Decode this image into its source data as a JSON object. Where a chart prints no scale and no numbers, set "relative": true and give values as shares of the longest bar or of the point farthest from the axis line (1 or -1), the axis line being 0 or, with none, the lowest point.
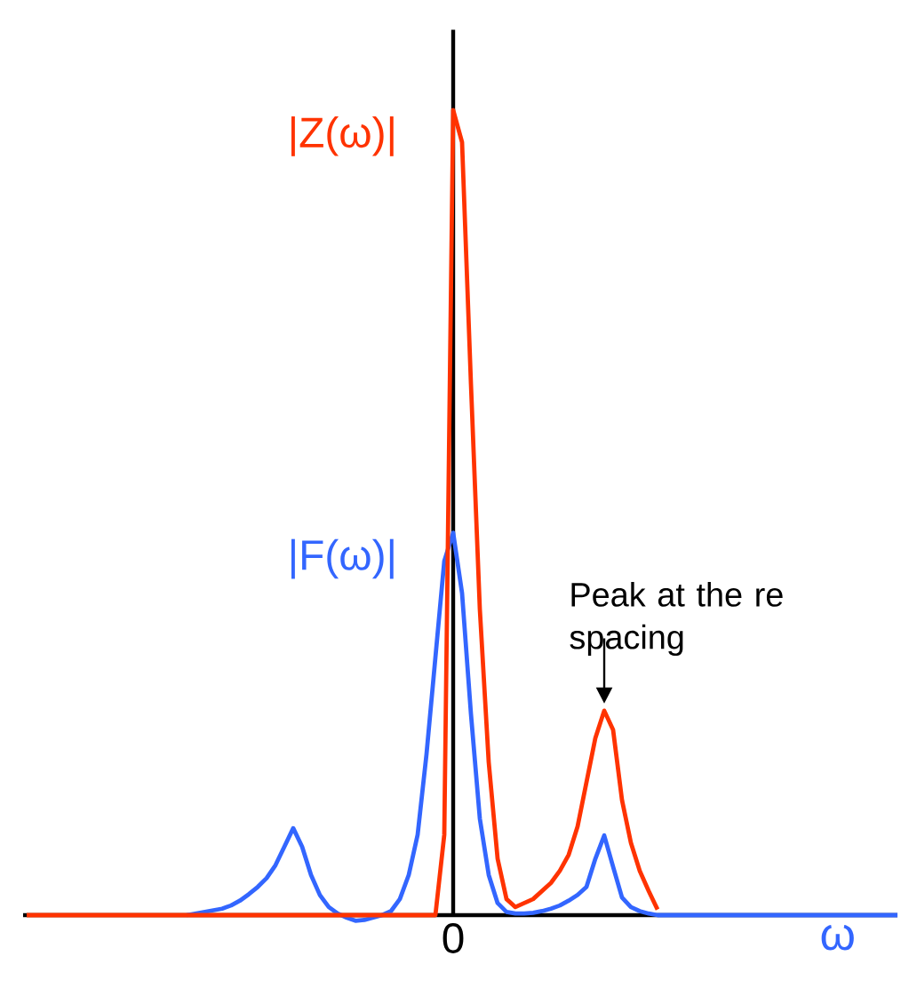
{
  "chart_data": {
    "type": "line",
    "relative": true,
    "xlabel": "ω",
    "marker": "none",
    "line_style": "solid",
    "categories": [
      null,
      null,
      null,
      null,
      null,
      null,
      null,
      null,
      null,
      null,
      null,
      null,
      null,
      null,
      null,
      null,
      null,
      null,
      null,
      null,
      null,
      null,
      null,
      null,
      null,
      null,
      null,
      null,
      null,
      null,
      null,
      null,
      null,
      null,
      null,
      null,
      null,
      null,
      null,
      null,
      null,
      null,
      null,
      null,
      null,
      null,
      null,
      null,
      null,
      null,
      null,
      null,
      null,
      null,
      null,
      null,
      null,
      null,
      null,
      null,
      null,
      null,
      null,
      null,
      null,
      null,
      null,
      null,
      null,
      null,
      null,
      null,
      null,
      null,
      null,
      null,
      null,
      null,
      null,
      null,
      null,
      null,
      null,
      null,
      null,
      null,
      null,
      null,
      null,
      null,
      null,
      null,
      null,
      null,
      null,
      null,
      null,
      null,
      null
    ],
    "annotations": [
      "Peak at the re spacing",
      "0"
    ],
    "series": [
      {
        "name": "|Z(ω)|",
        "color": "#ff3300",
        "values": [
          0,
          0,
          0,
          0,
          0,
          0,
          0,
          0,
          0,
          0,
          0,
          0,
          0,
          0,
          0,
          0,
          0,
          0,
          0,
          0,
          0,
          0,
          0,
          0,
          0,
          0,
          0,
          0,
          0,
          0,
          0,
          0,
          0,
          0,
          0,
          0,
          0,
          0,
          0,
          0,
          0,
          0,
          0,
          0,
          0,
          0,
          0,
          0.1,
          1,
          0.96,
          0.66,
          0.38,
          0.19,
          0.07,
          0.02,
          0.01,
          0.015,
          0.02,
          0.03,
          0.04,
          0.055,
          0.075,
          0.11,
          0.165,
          0.22,
          0.254,
          0.23,
          0.143,
          0.09,
          0.055,
          0.03,
          0.007,
          null,
          null,
          null,
          null,
          null,
          null,
          null,
          null,
          null,
          null,
          null,
          null,
          null,
          null,
          null,
          null,
          null,
          null,
          null,
          null,
          null,
          null,
          null,
          null,
          null,
          null,
          null
        ]
      },
      {
        "name": "|F(ω)|",
        "color": "#3366ff",
        "values": [
          null,
          null,
          null,
          null,
          null,
          null,
          null,
          null,
          null,
          null,
          null,
          null,
          null,
          null,
          null,
          null,
          null,
          null,
          0,
          0.002,
          0.004,
          0.006,
          0.008,
          0.012,
          0.018,
          0.026,
          0.035,
          0.046,
          0.062,
          0.085,
          0.108,
          0.085,
          0.05,
          0.025,
          0.01,
          0.002,
          -0.003,
          -0.007,
          -0.006,
          -0.003,
          0,
          0.005,
          0.02,
          0.05,
          0.1,
          0.2,
          0.32,
          0.44,
          0.475,
          0.4,
          0.25,
          0.12,
          0.05,
          0.015,
          0.004,
          0.002,
          0.002,
          0.003,
          0.005,
          0.008,
          0.012,
          0.018,
          0.025,
          0.035,
          0.07,
          0.099,
          0.06,
          0.022,
          0.01,
          0.005,
          0.002,
          0,
          0,
          0,
          0,
          0,
          0,
          0,
          0,
          0,
          0,
          0,
          0,
          0,
          0,
          0,
          0,
          0,
          0,
          0,
          0,
          0,
          0,
          0,
          0,
          0,
          0,
          0,
          0
        ]
      }
    ]
  }
}
